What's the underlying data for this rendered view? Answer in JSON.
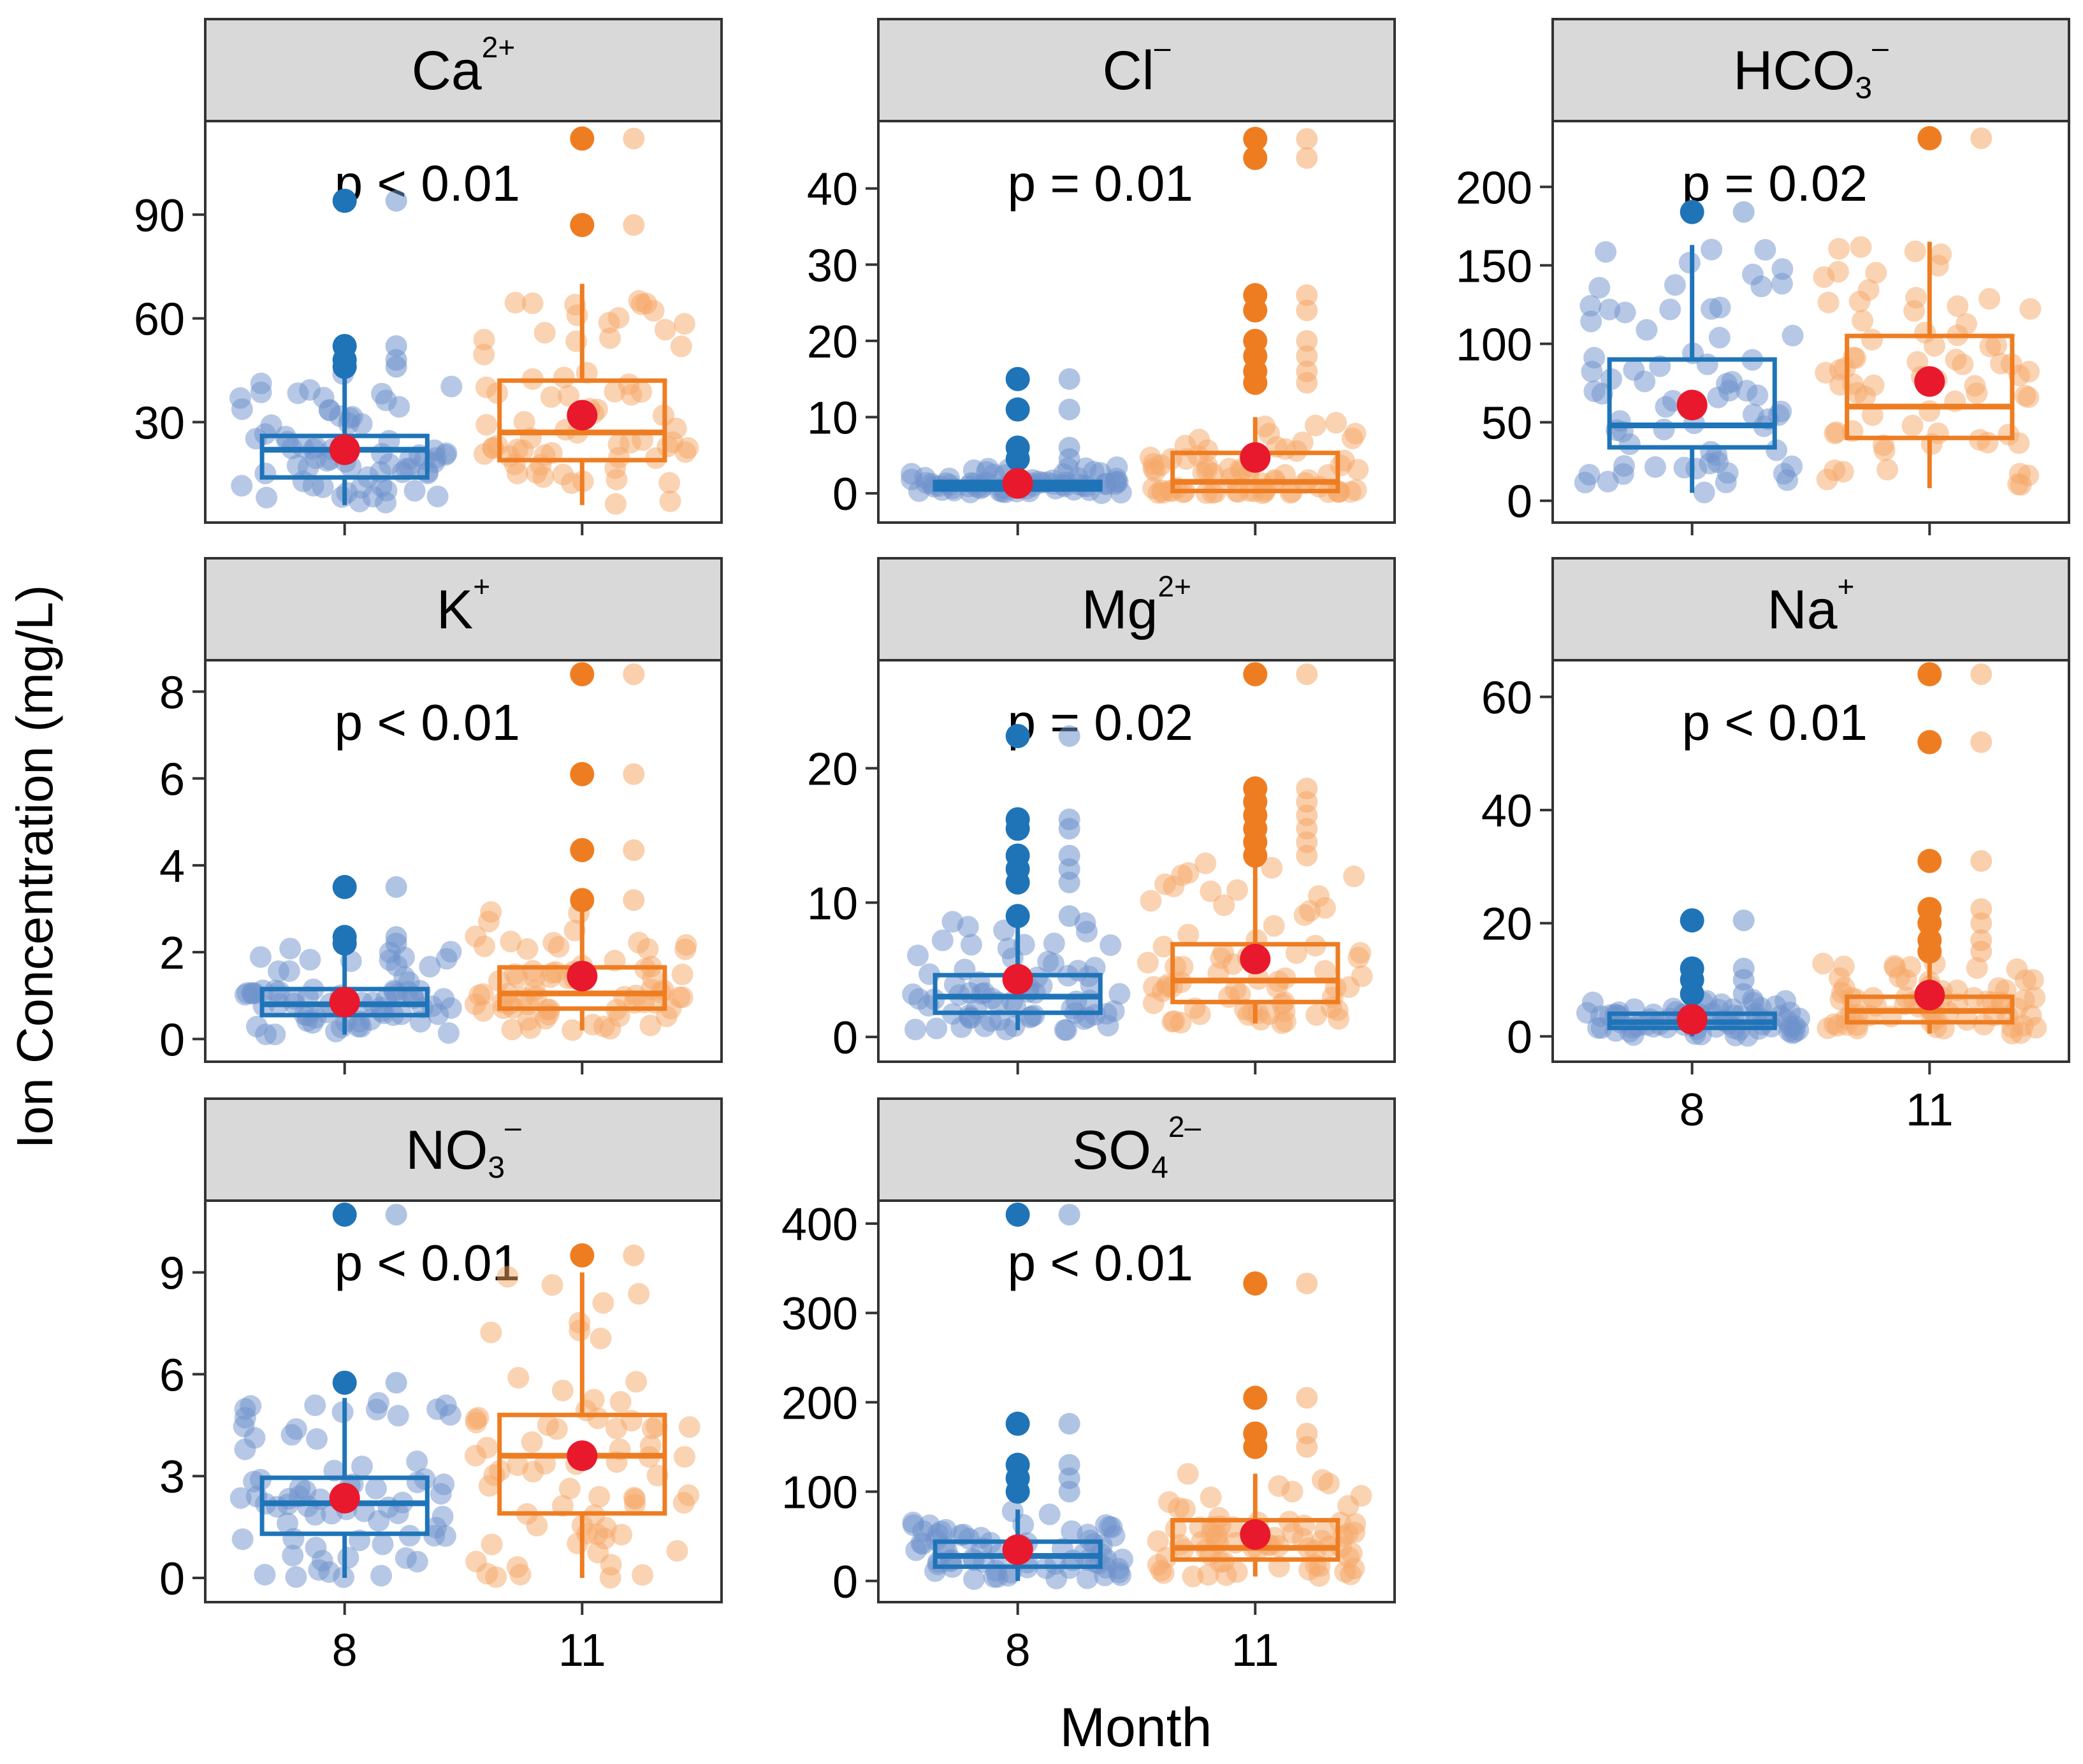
{
  "figure": {
    "ylabel": "Ion Concentration (mg/L)",
    "xlabel": "Month"
  },
  "colors": {
    "month8": "#1f74b8",
    "month8_light": "#6e92cc",
    "month11": "#ee7d22",
    "month11_light": "#f6a868",
    "mean": "#e8192c",
    "strip": "#d9d9d9"
  },
  "chart_data": [
    {
      "type": "box",
      "title": "Ca",
      "title_sup": "2+",
      "title_sub": "",
      "p_label": "p < 0.01",
      "categories": [
        "8",
        "11"
      ],
      "ylim": [
        5,
        113
      ],
      "yticks": [
        30,
        60,
        90
      ],
      "ytick_labels": [
        "30",
        "60",
        "90"
      ],
      "show_x_labels": false,
      "groups": [
        {
          "name": "8",
          "q1": 14,
          "median": 22,
          "q3": 26,
          "whisker_low": 6,
          "whisker_high": 44,
          "mean": 22,
          "outliers": [
            46,
            48,
            52,
            94
          ]
        },
        {
          "name": "11",
          "q1": 19,
          "median": 27,
          "q3": 42,
          "whisker_low": 6,
          "whisker_high": 70,
          "mean": 32,
          "outliers": [
            87,
            112
          ]
        }
      ]
    },
    {
      "type": "box",
      "title": "Cl",
      "title_sup": "–",
      "title_sub": "",
      "p_label": "p = 0.01",
      "categories": [
        "8",
        "11"
      ],
      "ylim": [
        -2,
        47
      ],
      "yticks": [
        0,
        10,
        20,
        30,
        40
      ],
      "ytick_labels": [
        "0",
        "10",
        "20",
        "30",
        "40"
      ],
      "show_x_labels": false,
      "groups": [
        {
          "name": "8",
          "q1": 0.5,
          "median": 1,
          "q3": 1.5,
          "whisker_low": 0,
          "whisker_high": 3.5,
          "mean": 1.3,
          "outliers": [
            4.5,
            6,
            11,
            15
          ]
        },
        {
          "name": "11",
          "q1": 0.3,
          "median": 1.5,
          "q3": 5.3,
          "whisker_low": 0,
          "whisker_high": 10,
          "mean": 4.7,
          "outliers": [
            14.5,
            16,
            18,
            20,
            24,
            26,
            44,
            46.5
          ]
        }
      ]
    },
    {
      "type": "box",
      "title": "HCO",
      "title_sup": "–",
      "title_sub": "3",
      "p_label": "p = 0.02",
      "categories": [
        "8",
        "11"
      ],
      "ylim": [
        -5,
        233
      ],
      "yticks": [
        0,
        50,
        100,
        150,
        200
      ],
      "ytick_labels": [
        "0",
        "50",
        "100",
        "150",
        "200"
      ],
      "show_x_labels": false,
      "groups": [
        {
          "name": "8",
          "q1": 34,
          "median": 48,
          "q3": 90,
          "whisker_low": 5,
          "whisker_high": 163,
          "mean": 61,
          "outliers": [
            184
          ]
        },
        {
          "name": "11",
          "q1": 40,
          "median": 60,
          "q3": 105,
          "whisker_low": 8,
          "whisker_high": 165,
          "mean": 76,
          "outliers": [
            231
          ]
        }
      ]
    },
    {
      "type": "box",
      "title": "K",
      "title_sup": "+",
      "title_sub": "",
      "p_label": "p < 0.01",
      "categories": [
        "8",
        "11"
      ],
      "ylim": [
        -0.2,
        8.4
      ],
      "yticks": [
        0,
        2,
        4,
        6,
        8
      ],
      "ytick_labels": [
        "0",
        "2",
        "4",
        "6",
        "8"
      ],
      "show_x_labels": false,
      "groups": [
        {
          "name": "8",
          "q1": 0.55,
          "median": 0.8,
          "q3": 1.15,
          "whisker_low": 0.1,
          "whisker_high": 2.1,
          "mean": 0.85,
          "outliers": [
            2.2,
            2.35,
            3.5
          ]
        },
        {
          "name": "11",
          "q1": 0.7,
          "median": 1.05,
          "q3": 1.65,
          "whisker_low": 0.2,
          "whisker_high": 3.0,
          "mean": 1.45,
          "outliers": [
            3.2,
            4.35,
            6.1,
            8.4
          ]
        }
      ]
    },
    {
      "type": "box",
      "title": "Mg",
      "title_sup": "2+",
      "title_sub": "",
      "p_label": "p = 0.02",
      "categories": [
        "8",
        "11"
      ],
      "ylim": [
        -0.8,
        27
      ],
      "yticks": [
        0,
        10,
        20
      ],
      "ytick_labels": [
        "0",
        "10",
        "20"
      ],
      "show_x_labels": false,
      "groups": [
        {
          "name": "8",
          "q1": 1.8,
          "median": 3.0,
          "q3": 4.6,
          "whisker_low": 0.5,
          "whisker_high": 8.8,
          "mean": 4.3,
          "outliers": [
            9,
            11.5,
            12.5,
            13.5,
            15.5,
            16.2,
            22.4
          ]
        },
        {
          "name": "11",
          "q1": 2.6,
          "median": 4.2,
          "q3": 6.9,
          "whisker_low": 1,
          "whisker_high": 13,
          "mean": 5.8,
          "outliers": [
            13.5,
            14.5,
            15.5,
            16.5,
            17.5,
            18.5,
            27
          ]
        }
      ]
    },
    {
      "type": "box",
      "title": "Na",
      "title_sup": "+",
      "title_sub": "",
      "p_label": "p < 0.01",
      "categories": [
        "8",
        "11"
      ],
      "ylim": [
        -2,
        64
      ],
      "yticks": [
        0,
        20,
        40,
        60
      ],
      "ytick_labels": [
        "0",
        "20",
        "40",
        "60"
      ],
      "show_x_labels": true,
      "groups": [
        {
          "name": "8",
          "q1": 1.5,
          "median": 2.5,
          "q3": 4,
          "whisker_low": 0,
          "whisker_high": 6.5,
          "mean": 3,
          "outliers": [
            7.5,
            10,
            12,
            20.5
          ]
        },
        {
          "name": "11",
          "q1": 2.5,
          "median": 4.5,
          "q3": 7,
          "whisker_low": 0.5,
          "whisker_high": 13,
          "mean": 7.3,
          "outliers": [
            15,
            17,
            20,
            22.5,
            31,
            52,
            64
          ]
        }
      ]
    },
    {
      "type": "box",
      "title": "NO",
      "title_sup": "–",
      "title_sub": "3",
      "p_label": "p < 0.01",
      "categories": [
        "8",
        "11"
      ],
      "ylim": [
        -0.3,
        10.7
      ],
      "yticks": [
        0,
        3,
        6,
        9
      ],
      "ytick_labels": [
        "0",
        "3",
        "6",
        "9"
      ],
      "show_x_labels": true,
      "groups": [
        {
          "name": "8",
          "q1": 1.3,
          "median": 2.2,
          "q3": 2.95,
          "whisker_low": 0,
          "whisker_high": 5.3,
          "mean": 2.35,
          "outliers": [
            5.75,
            10.7
          ]
        },
        {
          "name": "11",
          "q1": 1.9,
          "median": 3.6,
          "q3": 4.8,
          "whisker_low": 0,
          "whisker_high": 9,
          "mean": 3.6,
          "outliers": [
            9.5
          ]
        }
      ]
    },
    {
      "type": "box",
      "title": "SO",
      "title_sup": "2–",
      "title_sub": "4",
      "p_label": "p < 0.01",
      "categories": [
        "8",
        "11"
      ],
      "ylim": [
        -8,
        410
      ],
      "yticks": [
        0,
        100,
        200,
        300,
        400
      ],
      "ytick_labels": [
        "0",
        "100",
        "200",
        "300",
        "400"
      ],
      "show_x_labels": true,
      "groups": [
        {
          "name": "8",
          "q1": 16,
          "median": 28,
          "q3": 44,
          "whisker_low": 0,
          "whisker_high": 80,
          "mean": 35,
          "outliers": [
            100,
            115,
            130,
            176,
            410
          ]
        },
        {
          "name": "11",
          "q1": 24,
          "median": 37,
          "q3": 68,
          "whisker_low": 5,
          "whisker_high": 120,
          "mean": 52,
          "outliers": [
            150,
            165,
            205,
            333
          ]
        }
      ]
    }
  ]
}
